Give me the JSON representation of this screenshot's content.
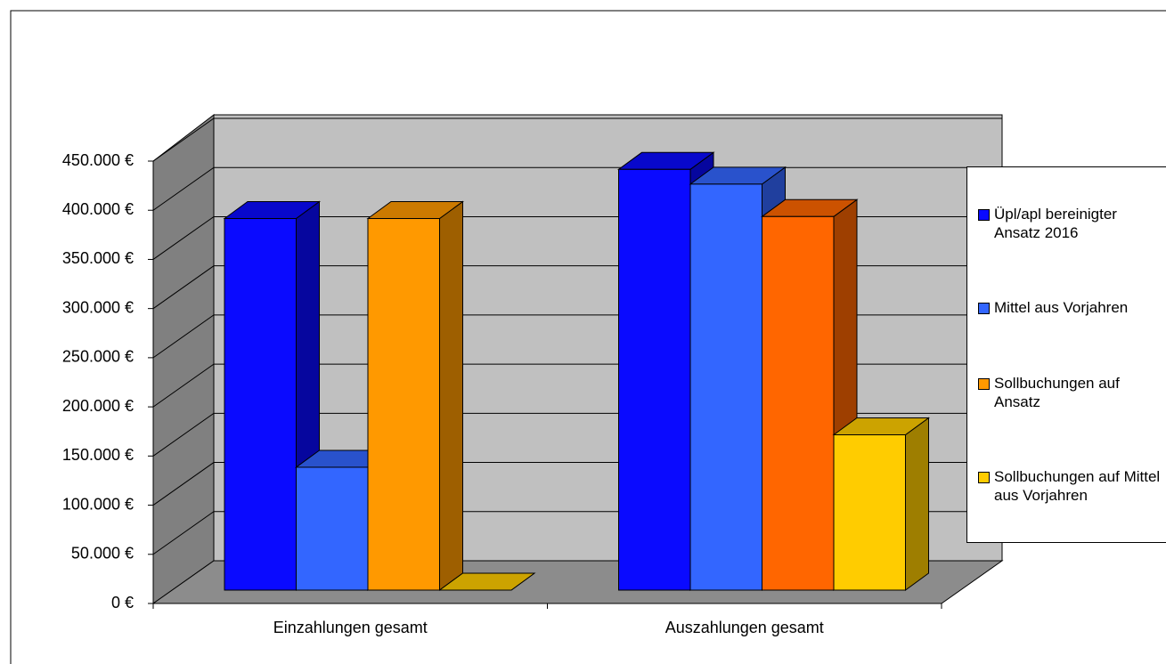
{
  "chart_data": {
    "type": "bar3d",
    "categories": [
      "Einzahlungen gesamt",
      "Auszahlungen gesamt"
    ],
    "series": [
      {
        "name": "Üpl/apl bereinigter Ansatz 2016",
        "color": "#0a0aff",
        "values": [
          378000,
          428000
        ]
      },
      {
        "name": "Mittel aus Vorjahren",
        "color": "#3366ff",
        "values": [
          125000,
          413000
        ]
      },
      {
        "name": "Sollbuchungen auf Ansatz",
        "color": "#ff9900",
        "point_colors": [
          "#ff9900",
          "#ff6600"
        ],
        "values": [
          378000,
          380000
        ]
      },
      {
        "name": "Sollbuchungen auf Mittel aus Vorjahren",
        "color": "#ffcc00",
        "values": [
          0,
          158000
        ]
      }
    ],
    "ylim": [
      0,
      450000
    ],
    "yticks": [
      {
        "value": 0,
        "label": "0 €"
      },
      {
        "value": 50000,
        "label": "50.000 €"
      },
      {
        "value": 100000,
        "label": "100.000 €"
      },
      {
        "value": 150000,
        "label": "150.000 €"
      },
      {
        "value": 200000,
        "label": "200.000 €"
      },
      {
        "value": 250000,
        "label": "250.000 €"
      },
      {
        "value": 300000,
        "label": "300.000 €"
      },
      {
        "value": 350000,
        "label": "350.000 €"
      },
      {
        "value": 400000,
        "label": "400.000 €"
      },
      {
        "value": 450000,
        "label": "450.000 €"
      }
    ],
    "grid": true,
    "legend": "right"
  }
}
